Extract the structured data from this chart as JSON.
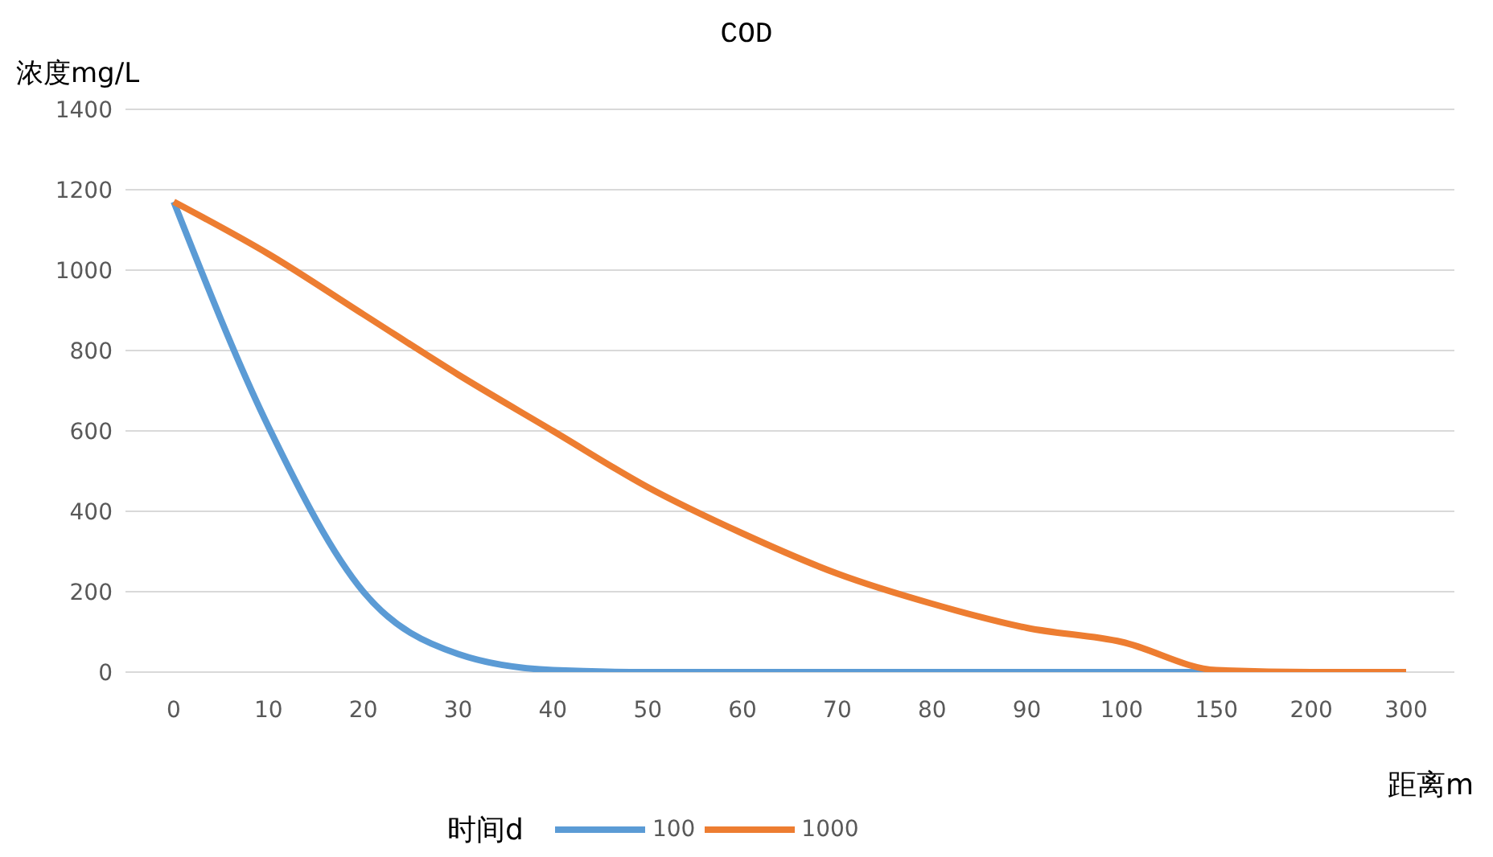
{
  "chart_data": {
    "type": "line",
    "title": "COD",
    "xlabel": "距离m",
    "ylabel": "浓度mg/L",
    "legend_title": "时间d",
    "categories": [
      "0",
      "10",
      "20",
      "30",
      "40",
      "50",
      "60",
      "70",
      "80",
      "90",
      "100",
      "150",
      "200",
      "300"
    ],
    "series": [
      {
        "name": "100",
        "color": "#5b9bd5",
        "values": [
          1170,
          610,
          200,
          45,
          5,
          0,
          0,
          0,
          0,
          0,
          0,
          0,
          0,
          0
        ]
      },
      {
        "name": "1000",
        "color": "#ed7d31",
        "values": [
          1170,
          1040,
          890,
          740,
          600,
          460,
          345,
          245,
          170,
          110,
          75,
          5,
          0,
          0
        ]
      }
    ],
    "ylim": [
      0,
      1400
    ],
    "yticks": [
      0,
      200,
      400,
      600,
      800,
      1000,
      1200,
      1400
    ],
    "grid": "y",
    "legend": "bottom",
    "marker": "none",
    "line_style": "solid"
  }
}
